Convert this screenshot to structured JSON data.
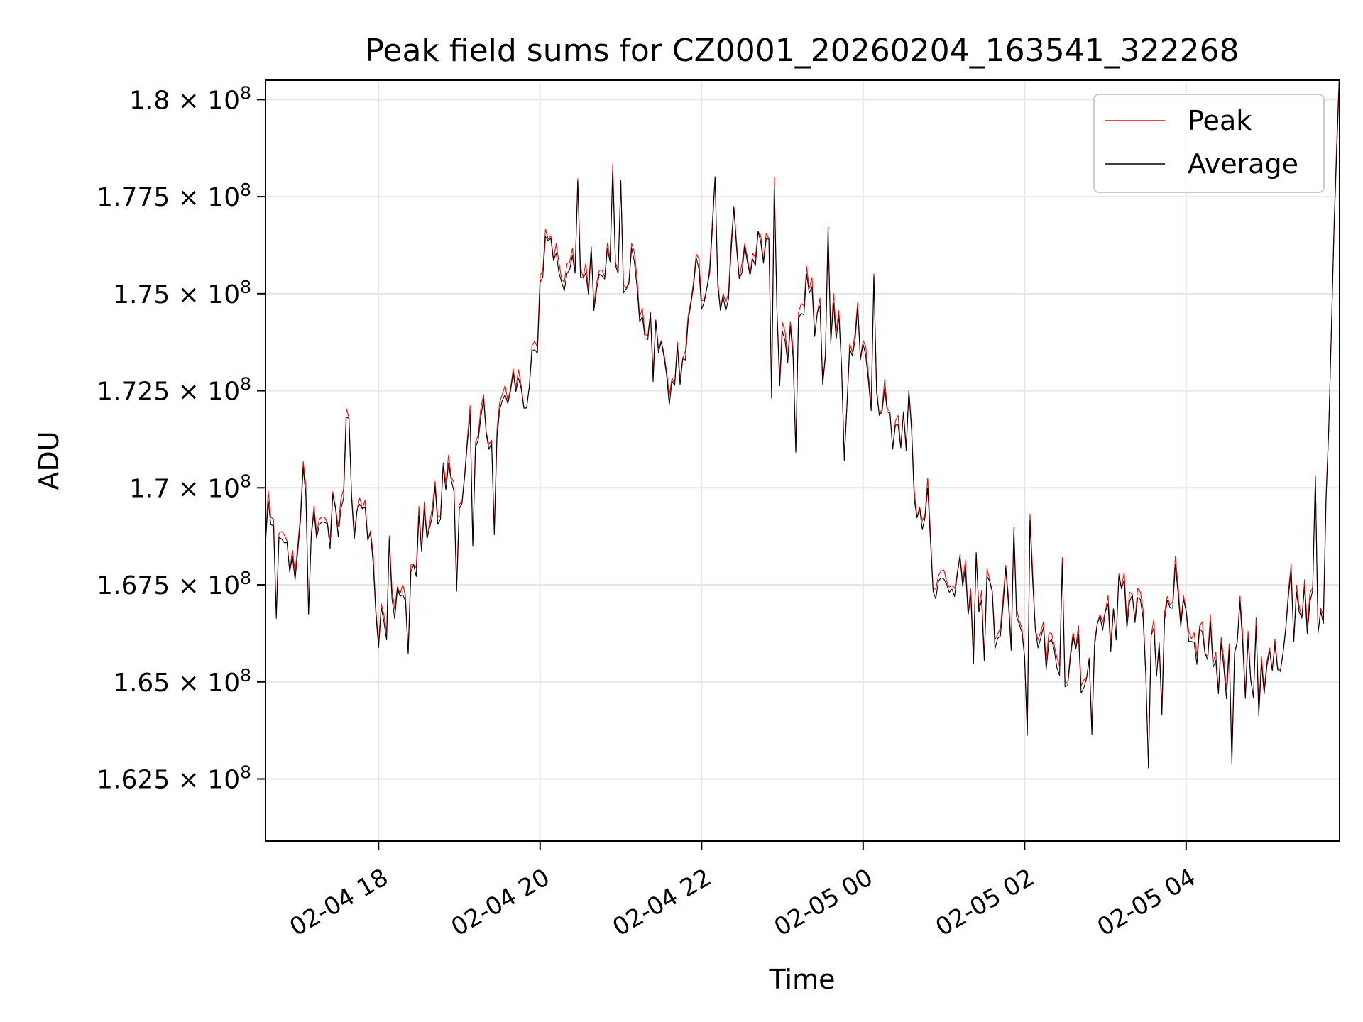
{
  "chart_data": {
    "type": "line",
    "title": "Peak field sums for CZ0001_20260204_163541_322268",
    "xlabel": "Time",
    "ylabel": "ADU",
    "x_range_hours": [
      16.6,
      5.9
    ],
    "x_ticks": [
      {
        "hours": 18,
        "label": "02-04 18"
      },
      {
        "hours": 20,
        "label": "02-04 20"
      },
      {
        "hours": 22,
        "label": "02-04 22"
      },
      {
        "hours": 24,
        "label": "02-05 00"
      },
      {
        "hours": 26,
        "label": "02-05 02"
      },
      {
        "hours": 28,
        "label": "02-05 04"
      }
    ],
    "ylim": [
      160900000,
      180500000
    ],
    "y_ticks": [
      {
        "value": 162500000,
        "mantissa": "1.625"
      },
      {
        "value": 165000000,
        "mantissa": "1.65"
      },
      {
        "value": 167500000,
        "mantissa": "1.675"
      },
      {
        "value": 170000000,
        "mantissa": "1.7"
      },
      {
        "value": 172500000,
        "mantissa": "1.725"
      },
      {
        "value": 175000000,
        "mantissa": "1.75"
      },
      {
        "value": 177500000,
        "mantissa": "1.775"
      },
      {
        "value": 180000000,
        "mantissa": "1.8"
      }
    ],
    "y_tick_times": "×",
    "y_tick_base": "10",
    "y_tick_exponent": "8",
    "grid": true,
    "legend_position": "top-right",
    "series": [
      {
        "name": "Peak",
        "color": "#ff0000"
      },
      {
        "name": "Average",
        "color": "#000000"
      }
    ],
    "sample_interval_minutes": 2,
    "trend_hours": [
      16.6,
      16.9,
      17.2,
      17.5,
      17.8,
      18.0,
      18.3,
      18.6,
      18.9,
      19.2,
      19.5,
      19.8,
      20.1,
      20.4,
      20.7,
      21.0,
      21.3,
      21.6,
      21.9,
      22.2,
      22.5,
      22.8,
      23.1,
      23.4,
      23.7,
      24.0,
      24.3,
      24.6,
      24.9,
      25.2,
      25.5,
      25.8,
      26.1,
      26.4,
      26.7,
      27.0,
      27.3,
      27.6,
      27.9,
      28.2,
      28.5,
      28.8,
      29.1,
      29.4,
      29.7,
      29.9
    ],
    "trend_values": [
      169500000,
      168600000,
      169300000,
      169500000,
      169800000,
      166200000,
      166800000,
      168300000,
      170400000,
      171300000,
      172200000,
      173200000,
      175500000,
      175600000,
      175500000,
      175300000,
      174200000,
      173400000,
      174800000,
      175500000,
      175300000,
      175700000,
      174800000,
      174700000,
      174200000,
      173600000,
      172500000,
      170500000,
      168100000,
      167200000,
      166700000,
      166800000,
      166900000,
      166600000,
      165700000,
      166300000,
      166500000,
      166400000,
      166800000,
      166500000,
      166000000,
      165600000,
      165900000,
      165600000,
      167200000,
      180200000
    ]
  }
}
